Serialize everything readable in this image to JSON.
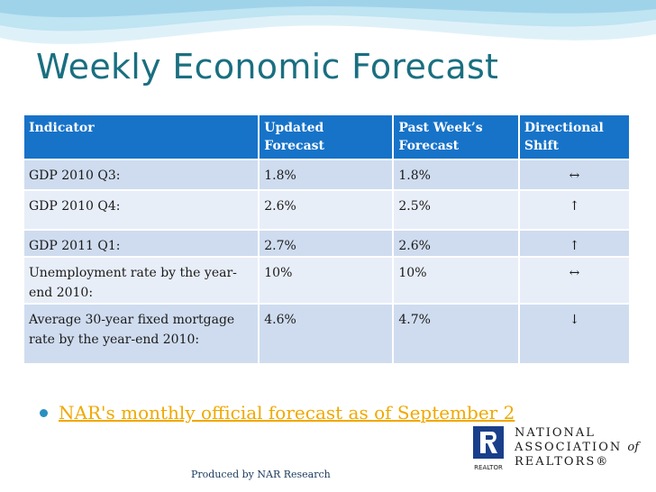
{
  "slide": {
    "title": "Weekly Economic Forecast",
    "bullet_link": "NAR's monthly official forecast as of September 2",
    "footer": "Produced by NAR Research"
  },
  "table": {
    "headers": [
      "Indicator",
      "Updated Forecast",
      "Past Week’s Forecast",
      "Directional Shift"
    ],
    "rows": [
      [
        "GDP 2010 Q3:",
        "1.8%",
        "1.8%",
        "↔"
      ],
      [
        "GDP 2010 Q4:",
        "2.6%",
        "2.5%",
        "↑"
      ],
      [
        "GDP 2011 Q1:",
        "2.7%",
        "2.6%",
        "↑"
      ],
      [
        "Unemployment rate by the year-end 2010:",
        "10%",
        "10%",
        "↔"
      ],
      [
        "Average 30-year fixed mortgage rate by the year-end 2010:",
        "4.6%",
        "4.7%",
        "↓"
      ]
    ]
  },
  "logo": {
    "line1": "NATIONAL",
    "line2": "ASSOCIATION",
    "line2_of": "of",
    "line3": "REALTORS",
    "registered": "®",
    "mark_word": "REALTOR"
  },
  "colors": {
    "title": "#1a6f80",
    "header_bg": "#1773c8",
    "row_dark": "#cfdcef",
    "row_light": "#e8eef8",
    "link": "#f0a800",
    "bullet": "#2a8fc0"
  }
}
